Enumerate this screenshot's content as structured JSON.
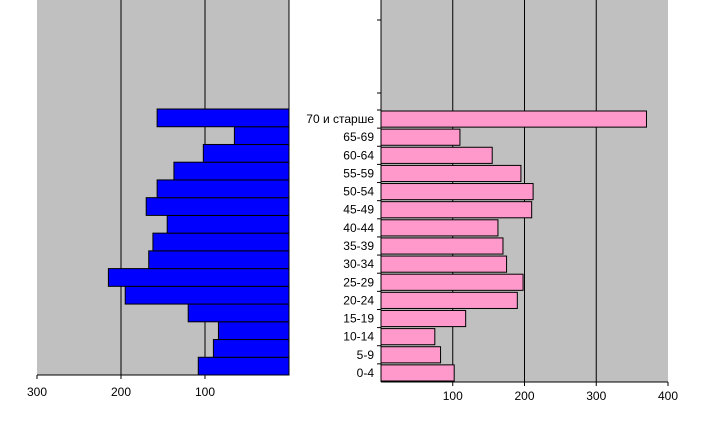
{
  "chart_data": {
    "type": "bar",
    "categories": [
      "0-4",
      "5-9",
      "10-14",
      "15-19",
      "20-24",
      "25-29",
      "30-34",
      "35-39",
      "40-44",
      "45-49",
      "50-54",
      "55-59",
      "60-64",
      "65-69",
      "70 и старше"
    ],
    "series": [
      {
        "values": [
          108,
          90,
          84,
          120,
          195,
          215,
          167,
          162,
          145,
          170,
          157,
          137,
          102,
          65,
          157
        ],
        "color": "#0000ff",
        "direction": "left"
      },
      {
        "values": [
          102,
          83,
          75,
          118,
          190,
          198,
          175,
          170,
          163,
          210,
          212,
          195,
          155,
          110,
          370
        ],
        "color": "#ff99cc",
        "direction": "right"
      }
    ],
    "left_axis": {
      "ticks": [
        "300",
        "200",
        "100"
      ],
      "range": [
        0,
        300
      ]
    },
    "right_axis": {
      "ticks": [
        "100",
        "200",
        "300",
        "400"
      ],
      "range": [
        0,
        400
      ]
    },
    "plot_background": "#c0c0c0",
    "grid": true,
    "legend": "none"
  }
}
